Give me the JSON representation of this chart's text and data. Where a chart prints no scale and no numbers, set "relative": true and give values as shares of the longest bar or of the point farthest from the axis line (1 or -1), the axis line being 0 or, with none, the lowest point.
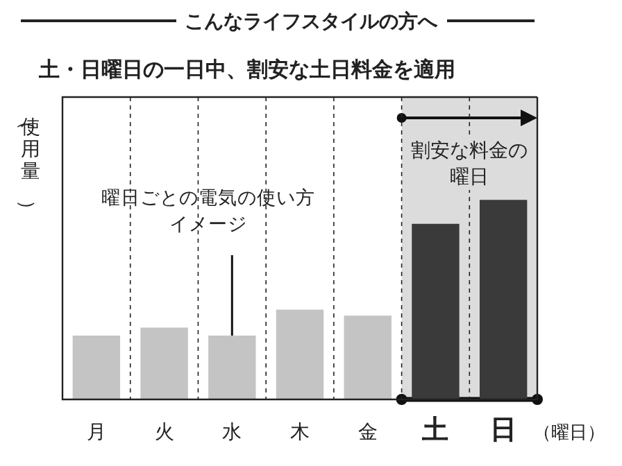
{
  "chart_data": {
    "type": "bar",
    "title": "こんなライフスタイルの方へ",
    "subtitle": "土・日曜日の一日中、割安な土日料金を適用",
    "ylabel": "（使用量）",
    "xlabel": "（曜日）",
    "categories": [
      "月",
      "火",
      "水",
      "木",
      "金",
      "土",
      "日"
    ],
    "values": [
      0.32,
      0.36,
      0.32,
      0.45,
      0.42,
      0.88,
      1
    ],
    "colors": [
      "#c4c4c4",
      "#c4c4c4",
      "#c4c4c4",
      "#c4c4c4",
      "#c4c4c4",
      "#3a3a3a",
      "#3a3a3a"
    ],
    "relative": true,
    "grid": "x",
    "bands": [
      {
        "axis": "x",
        "from": "土",
        "to": "日",
        "label": "割安な料金の曜日",
        "color": "#dcdcdc"
      }
    ],
    "annotations": [
      {
        "text": "曜日ごとの電気の使い方イメージ",
        "x": "水",
        "y": 0.32
      }
    ]
  }
}
